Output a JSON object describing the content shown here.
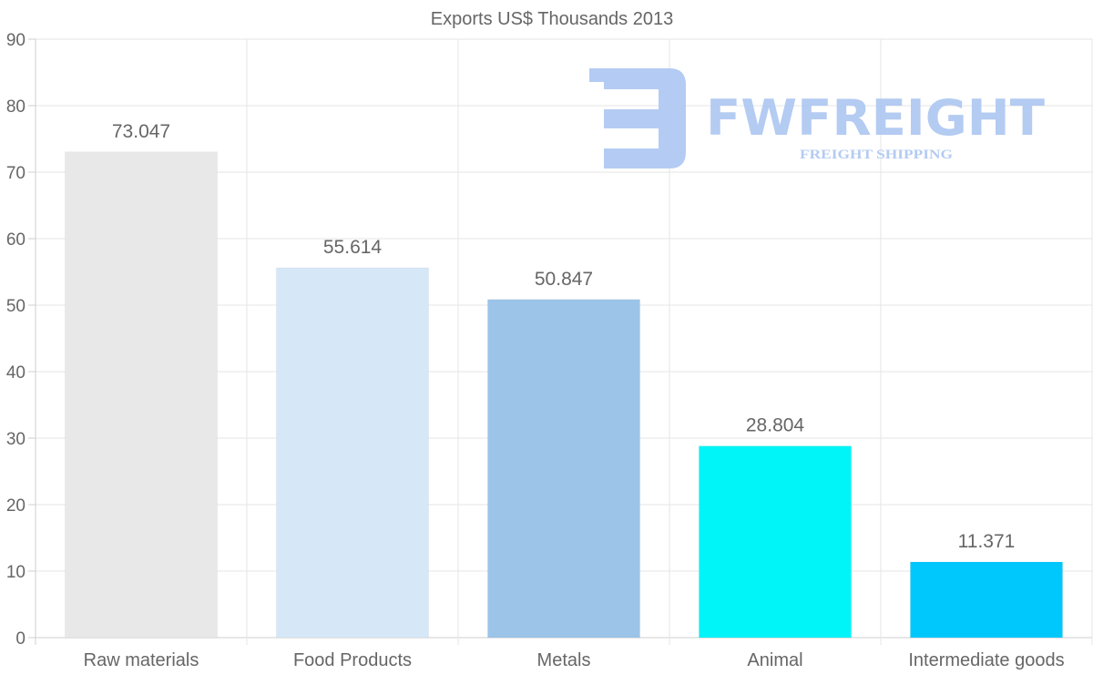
{
  "chart_data": {
    "type": "bar",
    "title": "Exports US$ Thousands 2013",
    "categories": [
      "Raw materials",
      "Food Products",
      "Metals",
      "Animal",
      "Intermediate goods"
    ],
    "values": [
      73.047,
      55.614,
      50.847,
      28.804,
      11.371
    ],
    "value_labels": [
      "73.047",
      "55.614",
      "50.847",
      "28.804",
      "11.371"
    ],
    "colors": [
      "#e8e8e8",
      "#d6e8f8",
      "#9cc4e8",
      "#00f5f8",
      "#00c8fc"
    ],
    "ylim": [
      0,
      90
    ],
    "yticks": [
      0,
      10,
      20,
      30,
      40,
      50,
      60,
      70,
      80,
      90
    ],
    "xlabel": "",
    "ylabel": "",
    "grid": true
  },
  "watermark": {
    "brand": "FWFREIGHT",
    "tagline": "FREIGHT SHIPPING"
  }
}
